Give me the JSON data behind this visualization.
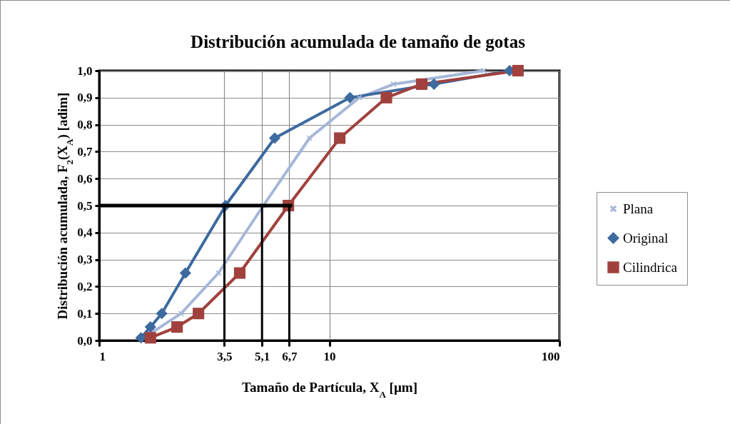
{
  "chart_data": {
    "type": "line",
    "title": "Distribución acumulada de tamaño  de gotas",
    "xlabel": "Tamaño de Partícula, X$_{A}$ [µm]",
    "ylabel": "Distribución acumulada, F$_{2}$(X$_{A}$) [adim]",
    "log": "x",
    "xlim": [
      1,
      100
    ],
    "xticks": [
      1,
      {
        "value": 3.5,
        "label": "3,5"
      },
      {
        "value": 5.1,
        "label": "5,1"
      },
      {
        "value": 6.7,
        "label": "6,7"
      },
      10,
      100
    ],
    "ylim": [
      0,
      1
    ],
    "yticks": [
      {
        "value": 0,
        "label": "0,0"
      },
      {
        "value": 0.1,
        "label": "0,1"
      },
      {
        "value": 0.2,
        "label": "0,2"
      },
      {
        "value": 0.3,
        "label": "0,3"
      },
      {
        "value": 0.4,
        "label": "0,4"
      },
      {
        "value": 0.5,
        "label": "0,5"
      },
      {
        "value": 0.6,
        "label": "0,6"
      },
      {
        "value": 0.7,
        "label": "0,7"
      },
      {
        "value": 0.8,
        "label": "0,8"
      },
      {
        "value": 0.9,
        "label": "0,9"
      },
      {
        "value": 1,
        "label": "1,0"
      }
    ],
    "grid": true,
    "legend": "right",
    "line_style": "solid",
    "series": [
      {
        "name": "Plana",
        "color": "#a5b7d8",
        "marker": "cross",
        "x": [
          1.7,
          2.27,
          3.3,
          5.17,
          8.2,
          13.5,
          19,
          46.9
        ],
        "values": [
          0.03,
          0.1,
          0.25,
          0.5,
          0.75,
          0.9,
          0.95,
          1.0
        ]
      },
      {
        "name": "Original",
        "color": "#3d6a9f",
        "marker": "diamond",
        "x": [
          1.52,
          1.67,
          1.87,
          2.37,
          3.54,
          5.79,
          12.3,
          28.5,
          60.7
        ],
        "values": [
          0.01,
          0.05,
          0.1,
          0.25,
          0.5,
          0.75,
          0.9,
          0.95,
          1.0
        ]
      },
      {
        "name": "Cilindrica",
        "color": "#a0413e",
        "marker": "square",
        "x": [
          1.67,
          2.18,
          2.7,
          4.08,
          6.64,
          11.1,
          17.7,
          25.2,
          66
        ],
        "values": [
          0.01,
          0.05,
          0.1,
          0.25,
          0.5,
          0.75,
          0.9,
          0.95,
          1.0
        ]
      }
    ],
    "ref_lines": [
      {
        "axis": "y",
        "value": 0.5,
        "color": "#000000"
      },
      {
        "axis": "x",
        "value": 3.5,
        "color": "#000000"
      },
      {
        "axis": "x",
        "value": 5.1,
        "color": "#000000"
      },
      {
        "axis": "x",
        "value": 6.7,
        "color": "#000000"
      }
    ]
  }
}
